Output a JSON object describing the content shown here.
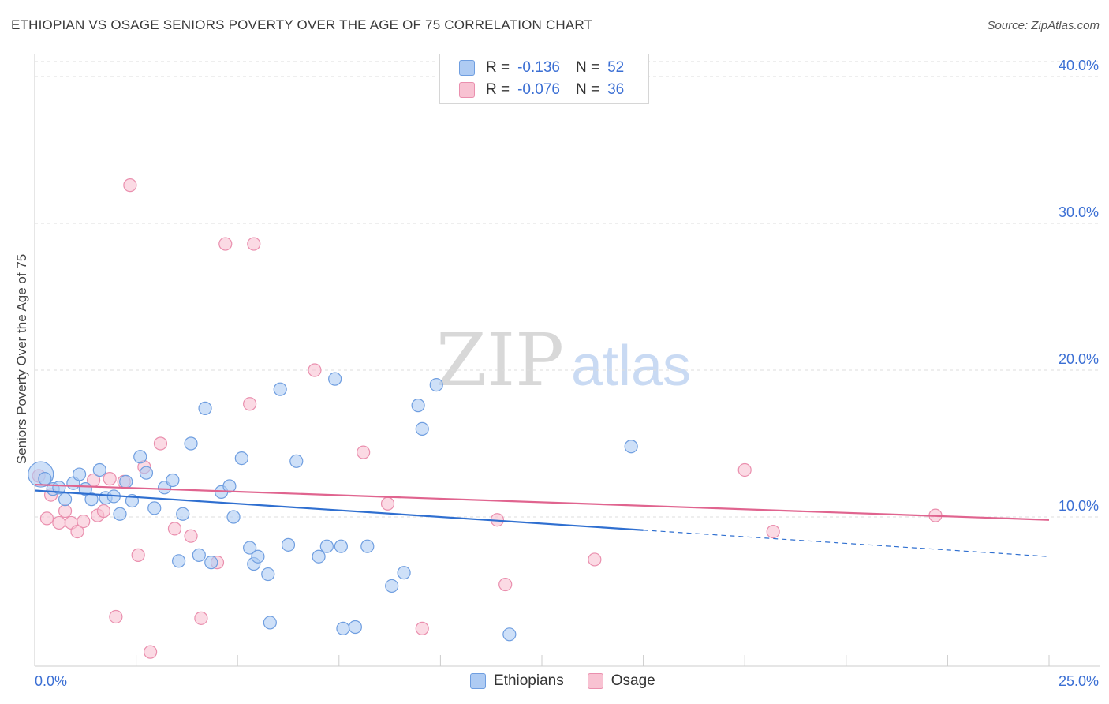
{
  "title": "ETHIOPIAN VS OSAGE SENIORS POVERTY OVER THE AGE OF 75 CORRELATION CHART",
  "source": "Source: ZipAtlas.com",
  "watermark": {
    "zip": "ZIP",
    "atlas": "atlas"
  },
  "colors": {
    "blue_fill": "#aecbf3",
    "blue_stroke": "#6f9ee0",
    "blue_line": "#2f6fd0",
    "pink_fill": "#f8c2d2",
    "pink_stroke": "#ea8fae",
    "pink_line": "#e0648f",
    "axis_text": "#3b6fd4",
    "grid": "#dddddd"
  },
  "legend_top": {
    "rows": [
      {
        "r_label": "R =",
        "r_value": "-0.136",
        "n_label": "N =",
        "n_value": "52"
      },
      {
        "r_label": "R =",
        "r_value": "-0.076",
        "n_label": "N =",
        "n_value": "36"
      }
    ]
  },
  "legend_bottom": {
    "items": [
      "Ethiopians",
      "Osage"
    ]
  },
  "chart_data": {
    "type": "scatter",
    "title": "ETHIOPIAN VS OSAGE SENIORS POVERTY OVER THE AGE OF 75 CORRELATION CHART",
    "xlabel": "",
    "ylabel": "Seniors Poverty Over the Age of 75",
    "xlim": [
      0,
      25
    ],
    "ylim": [
      0,
      40.5
    ],
    "x_tick_labels": [
      "0.0%",
      "25.0%"
    ],
    "y_ticks": [
      10,
      20,
      30,
      40
    ],
    "y_tick_labels": [
      "10.0%",
      "20.0%",
      "30.0%",
      "40.0%"
    ],
    "grid": true,
    "series": [
      {
        "name": "Ethiopians",
        "r": -0.136,
        "n": 52,
        "trend": {
          "x0": 0,
          "y0": 11.8,
          "x1": 15.0,
          "y1": 9.1,
          "dashed_to_x": 25,
          "dashed_to_y": 7.3
        },
        "points": [
          {
            "x": 0.15,
            "y": 12.9,
            "big": true
          },
          {
            "x": 0.25,
            "y": 12.6
          },
          {
            "x": 0.45,
            "y": 11.9
          },
          {
            "x": 0.6,
            "y": 12.0
          },
          {
            "x": 0.75,
            "y": 11.2
          },
          {
            "x": 0.95,
            "y": 12.3
          },
          {
            "x": 1.1,
            "y": 12.9
          },
          {
            "x": 1.25,
            "y": 11.9
          },
          {
            "x": 1.4,
            "y": 11.2
          },
          {
            "x": 1.6,
            "y": 13.2
          },
          {
            "x": 1.75,
            "y": 11.3
          },
          {
            "x": 1.95,
            "y": 11.4
          },
          {
            "x": 2.1,
            "y": 10.2
          },
          {
            "x": 2.25,
            "y": 12.4
          },
          {
            "x": 2.4,
            "y": 11.1
          },
          {
            "x": 2.6,
            "y": 14.1
          },
          {
            "x": 2.75,
            "y": 13.0
          },
          {
            "x": 2.95,
            "y": 10.6
          },
          {
            "x": 3.2,
            "y": 12.0
          },
          {
            "x": 3.4,
            "y": 12.5
          },
          {
            "x": 3.65,
            "y": 10.2
          },
          {
            "x": 3.55,
            "y": 7.0
          },
          {
            "x": 3.85,
            "y": 15.0
          },
          {
            "x": 4.05,
            "y": 7.4
          },
          {
            "x": 4.2,
            "y": 17.4
          },
          {
            "x": 4.35,
            "y": 6.9
          },
          {
            "x": 4.6,
            "y": 11.7
          },
          {
            "x": 4.8,
            "y": 12.1
          },
          {
            "x": 4.9,
            "y": 10.0
          },
          {
            "x": 5.1,
            "y": 14.0
          },
          {
            "x": 5.3,
            "y": 7.9
          },
          {
            "x": 5.4,
            "y": 6.8
          },
          {
            "x": 5.5,
            "y": 7.3
          },
          {
            "x": 5.75,
            "y": 6.1
          },
          {
            "x": 5.8,
            "y": 2.8
          },
          {
            "x": 6.05,
            "y": 18.7
          },
          {
            "x": 6.25,
            "y": 8.1
          },
          {
            "x": 6.45,
            "y": 13.8
          },
          {
            "x": 7.0,
            "y": 7.3
          },
          {
            "x": 7.2,
            "y": 8.0
          },
          {
            "x": 7.4,
            "y": 19.4
          },
          {
            "x": 7.55,
            "y": 8.0
          },
          {
            "x": 7.6,
            "y": 2.4
          },
          {
            "x": 7.9,
            "y": 2.5
          },
          {
            "x": 8.2,
            "y": 8.0
          },
          {
            "x": 8.8,
            "y": 5.3
          },
          {
            "x": 9.1,
            "y": 6.2
          },
          {
            "x": 9.45,
            "y": 17.6
          },
          {
            "x": 9.55,
            "y": 16.0
          },
          {
            "x": 9.9,
            "y": 19.0
          },
          {
            "x": 11.7,
            "y": 2.0
          },
          {
            "x": 14.7,
            "y": 14.8
          }
        ]
      },
      {
        "name": "Osage",
        "r": -0.076,
        "n": 36,
        "trend": {
          "x0": 0,
          "y0": 12.2,
          "x1": 25,
          "y1": 9.8
        },
        "points": [
          {
            "x": 0.1,
            "y": 12.8
          },
          {
            "x": 0.3,
            "y": 9.9
          },
          {
            "x": 0.4,
            "y": 11.5
          },
          {
            "x": 0.6,
            "y": 9.6
          },
          {
            "x": 0.75,
            "y": 10.4
          },
          {
            "x": 0.9,
            "y": 9.6
          },
          {
            "x": 1.05,
            "y": 9.0
          },
          {
            "x": 1.2,
            "y": 9.7
          },
          {
            "x": 1.45,
            "y": 12.5
          },
          {
            "x": 1.55,
            "y": 10.1
          },
          {
            "x": 1.7,
            "y": 10.4
          },
          {
            "x": 1.85,
            "y": 12.6
          },
          {
            "x": 2.0,
            "y": 3.2
          },
          {
            "x": 2.2,
            "y": 12.4
          },
          {
            "x": 2.35,
            "y": 32.6
          },
          {
            "x": 2.55,
            "y": 7.4
          },
          {
            "x": 2.7,
            "y": 13.4
          },
          {
            "x": 2.85,
            "y": 0.8
          },
          {
            "x": 3.1,
            "y": 15.0
          },
          {
            "x": 3.45,
            "y": 9.2
          },
          {
            "x": 3.85,
            "y": 8.7
          },
          {
            "x": 4.1,
            "y": 3.1
          },
          {
            "x": 4.5,
            "y": 6.9
          },
          {
            "x": 4.7,
            "y": 28.6
          },
          {
            "x": 5.3,
            "y": 17.7
          },
          {
            "x": 5.4,
            "y": 28.6
          },
          {
            "x": 6.9,
            "y": 20.0
          },
          {
            "x": 8.1,
            "y": 14.4
          },
          {
            "x": 8.7,
            "y": 10.9
          },
          {
            "x": 9.55,
            "y": 2.4
          },
          {
            "x": 11.4,
            "y": 9.8
          },
          {
            "x": 11.6,
            "y": 5.4
          },
          {
            "x": 13.8,
            "y": 7.1
          },
          {
            "x": 17.5,
            "y": 13.2
          },
          {
            "x": 18.2,
            "y": 9.0
          },
          {
            "x": 22.2,
            "y": 10.1
          }
        ]
      }
    ]
  }
}
